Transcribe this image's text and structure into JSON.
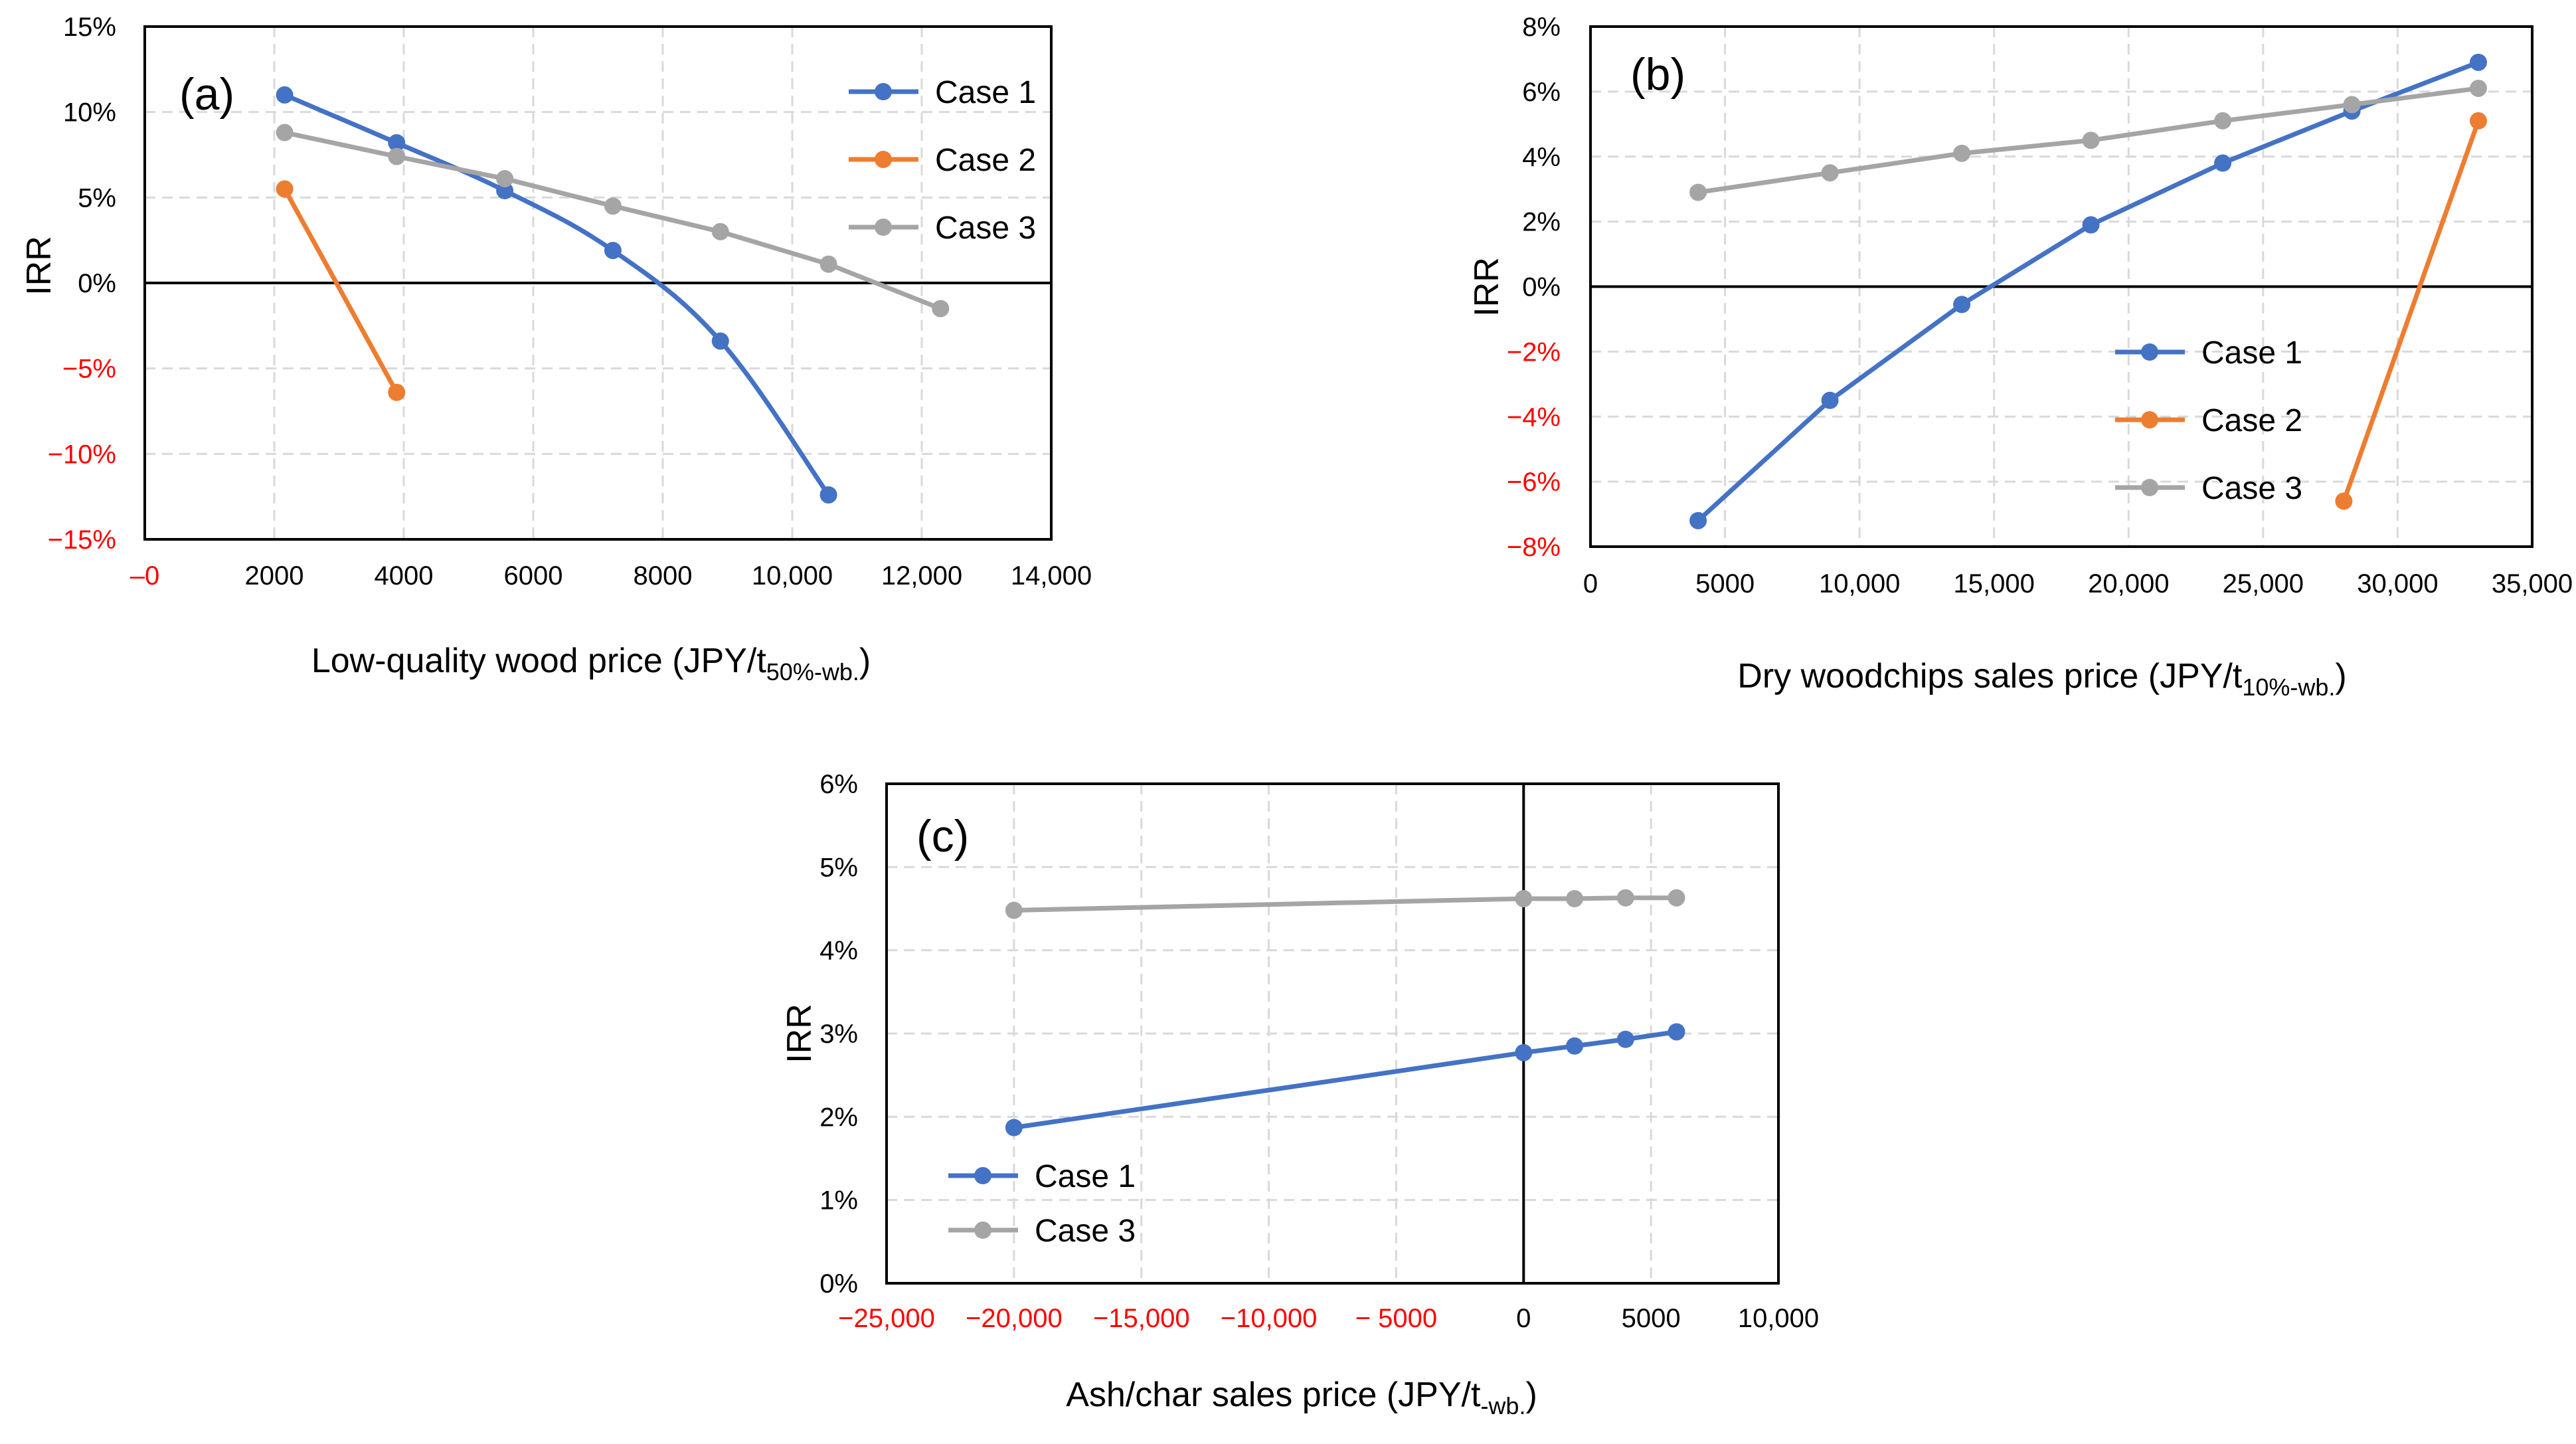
{
  "colors": {
    "case1": "#4472C4",
    "case2": "#ED7D31",
    "case3": "#A5A5A5",
    "negative_tick": "#FF0000",
    "grid": "#D9D9D9",
    "axis": "#000000"
  },
  "chart_data": [
    {
      "type": "line",
      "panel_label": "(a)",
      "xlabel_main": "Low-quality wood price (JPY/t",
      "xlabel_sub": "50%-wb.",
      "xlabel_close": ")",
      "ylabel": "IRR",
      "xlim": [
        0,
        14000
      ],
      "ylim": [
        -15,
        15
      ],
      "x_ticks": [
        0,
        2000,
        4000,
        6000,
        8000,
        10000,
        12000,
        14000
      ],
      "x_tick_labels": [
        "–0",
        "2000",
        "4000",
        "6000",
        "8000",
        "10,000",
        "12,000",
        "14,000"
      ],
      "x_tick_negative": [
        true,
        false,
        false,
        false,
        false,
        false,
        false,
        false
      ],
      "y_ticks": [
        15,
        10,
        5,
        0,
        -5,
        -10,
        -15
      ],
      "y_tick_labels": [
        "15%",
        "10%",
        "5%",
        "0%",
        "−5%",
        "−10%",
        "−15%"
      ],
      "y_tick_negative": [
        false,
        false,
        false,
        false,
        true,
        true,
        true
      ],
      "zero_line": "horizontal",
      "legend": "top-right",
      "series": [
        {
          "name": "Case 1",
          "color_key": "case1",
          "smooth": true,
          "x": [
            2160,
            3890,
            5560,
            7230,
            8890,
            10560
          ],
          "y": [
            11.0,
            8.2,
            5.4,
            1.9,
            -3.4,
            -12.4
          ]
        },
        {
          "name": "Case 2",
          "color_key": "case2",
          "smooth": false,
          "x": [
            2160,
            3890
          ],
          "y": [
            5.5,
            -6.4
          ]
        },
        {
          "name": "Case 3",
          "color_key": "case3",
          "smooth": false,
          "x": [
            2160,
            3890,
            5560,
            7230,
            8890,
            10560,
            12290
          ],
          "y": [
            8.8,
            7.4,
            6.1,
            4.5,
            3.0,
            1.1,
            -1.5
          ]
        }
      ]
    },
    {
      "type": "line",
      "panel_label": "(b)",
      "xlabel_main": "Dry woodchips sales price (JPY/t",
      "xlabel_sub": "10%-wb.",
      "xlabel_close": ")",
      "ylabel": "IRR",
      "xlim": [
        0,
        35000
      ],
      "ylim": [
        -8,
        8
      ],
      "x_ticks": [
        0,
        5000,
        10000,
        15000,
        20000,
        25000,
        30000,
        35000
      ],
      "x_tick_labels": [
        "0",
        "5000",
        "10,000",
        "15,000",
        "20,000",
        "25,000",
        "30,000",
        "35,000"
      ],
      "x_tick_negative": [
        false,
        false,
        false,
        false,
        false,
        false,
        false,
        false
      ],
      "y_ticks": [
        8,
        6,
        4,
        2,
        0,
        -2,
        -4,
        -6,
        -8
      ],
      "y_tick_labels": [
        "8%",
        "6%",
        "4%",
        "2%",
        "0%",
        "−2%",
        "−4%",
        "−6%",
        "−8%"
      ],
      "y_tick_negative": [
        false,
        false,
        false,
        false,
        false,
        true,
        true,
        true,
        true
      ],
      "zero_line": "horizontal",
      "legend": "center-left",
      "series": [
        {
          "name": "Case 1",
          "color_key": "case1",
          "smooth": false,
          "x": [
            4000,
            8900,
            13800,
            18600,
            23500,
            28300,
            33000
          ],
          "y": [
            -7.2,
            -3.5,
            -0.55,
            1.9,
            3.8,
            5.4,
            6.9
          ]
        },
        {
          "name": "Case 2",
          "color_key": "case2",
          "smooth": false,
          "x": [
            28000,
            33000
          ],
          "y": [
            -6.6,
            5.1
          ]
        },
        {
          "name": "Case 3",
          "color_key": "case3",
          "smooth": false,
          "x": [
            4000,
            8900,
            13800,
            18600,
            23500,
            28300,
            33000
          ],
          "y": [
            2.9,
            3.5,
            4.1,
            4.5,
            5.1,
            5.6,
            6.1
          ]
        }
      ]
    },
    {
      "type": "line",
      "panel_label": "(c)",
      "xlabel_main": "Ash/char sales price (JPY/t",
      "xlabel_sub": "-wb.",
      "xlabel_close": ")",
      "ylabel": "IRR",
      "xlim": [
        -25000,
        10000
      ],
      "ylim": [
        0,
        6
      ],
      "x_ticks": [
        -25000,
        -20000,
        -15000,
        -10000,
        -5000,
        0,
        5000,
        10000
      ],
      "x_tick_labels": [
        "−25,000",
        "−20,000",
        "−15,000",
        "−10,000",
        "− 5000",
        "0",
        "5000",
        "10,000"
      ],
      "x_tick_negative": [
        true,
        true,
        true,
        true,
        true,
        false,
        false,
        false
      ],
      "y_ticks": [
        6,
        5,
        4,
        3,
        2,
        1,
        0
      ],
      "y_tick_labels": [
        "6%",
        "5%",
        "4%",
        "3%",
        "2%",
        "1%",
        "0%"
      ],
      "y_tick_negative": [
        false,
        false,
        false,
        false,
        false,
        false,
        false
      ],
      "zero_line": "vertical",
      "legend": "bottom-left",
      "series": [
        {
          "name": "Case 1",
          "color_key": "case1",
          "smooth": false,
          "x": [
            -20000,
            0,
            2000,
            4000,
            6000
          ],
          "y": [
            1.87,
            2.77,
            2.85,
            2.93,
            3.02
          ]
        },
        {
          "name": "Case 3",
          "color_key": "case3",
          "smooth": false,
          "x": [
            -20000,
            0,
            2000,
            4000,
            6000
          ],
          "y": [
            4.48,
            4.62,
            4.62,
            4.63,
            4.63
          ]
        }
      ]
    }
  ]
}
